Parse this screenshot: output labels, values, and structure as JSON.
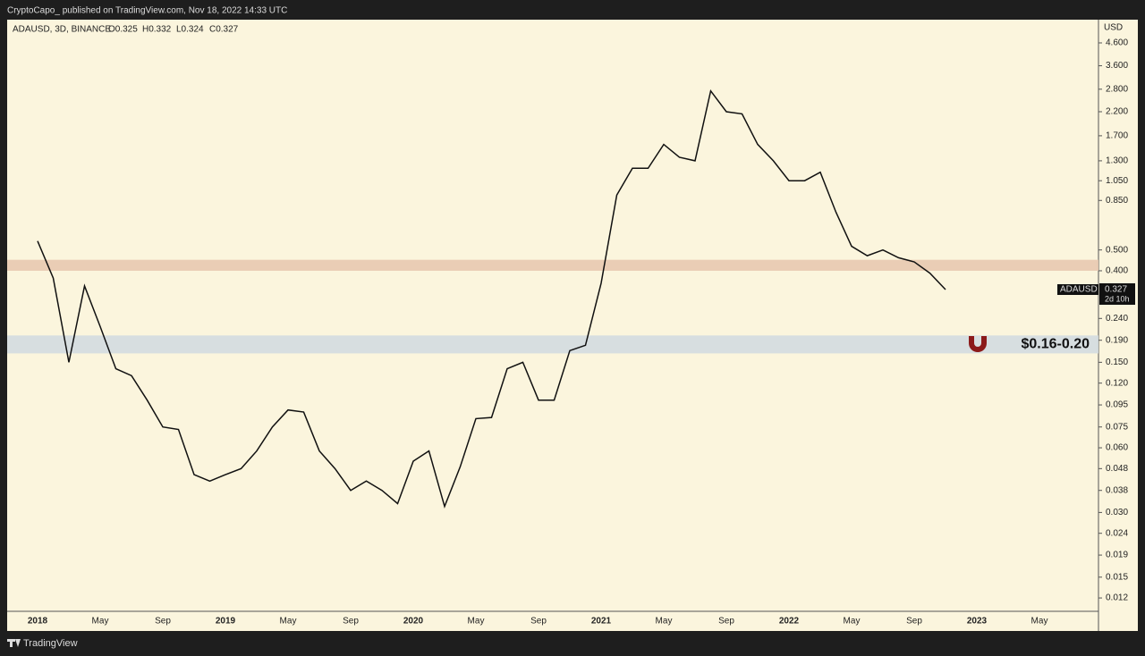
{
  "header": {
    "publisher": "CryptoCapo_ published on TradingView.com, Nov 18, 2022 14:33 UTC",
    "footer": "TradingView"
  },
  "chart_data": {
    "type": "line",
    "log_scale": true,
    "symbol_line": "ADAUSD, 3D, BINANCE",
    "ohlc": [
      "O0.325",
      "H0.332",
      "L0.324",
      "C0.327"
    ],
    "axis_unit": "USD",
    "price_tag": {
      "symbol": "ADAUSD",
      "price": "0.327",
      "countdown": "2d 10h"
    },
    "categories": [
      "2018",
      null,
      null,
      null,
      "May",
      null,
      null,
      null,
      "Sep",
      null,
      null,
      null,
      "2019",
      null,
      null,
      null,
      "May",
      null,
      null,
      null,
      "Sep",
      null,
      null,
      null,
      "2020",
      null,
      null,
      null,
      "May",
      null,
      null,
      null,
      "Sep",
      null,
      null,
      null,
      "2021",
      null,
      null,
      null,
      "May",
      null,
      null,
      null,
      "Sep",
      null,
      null,
      null,
      "2022",
      null,
      null,
      null,
      "May",
      null,
      null,
      null,
      "Sep",
      null,
      null,
      null,
      "2023",
      null,
      null,
      null,
      "May",
      null
    ],
    "series": [
      {
        "name": "ADAUSD",
        "color": "#111111",
        "values": [
          0.55,
          0.37,
          0.15,
          0.34,
          0.22,
          0.14,
          0.13,
          0.1,
          0.075,
          0.073,
          0.045,
          0.042,
          0.045,
          0.048,
          0.058,
          0.075,
          0.09,
          0.088,
          0.058,
          0.048,
          0.038,
          0.042,
          0.038,
          0.033,
          0.052,
          0.058,
          0.032,
          0.049,
          0.082,
          0.083,
          0.14,
          0.15,
          0.1,
          0.1,
          0.17,
          0.18,
          0.35,
          0.9,
          1.2,
          1.2,
          1.55,
          1.35,
          1.3,
          2.75,
          2.2,
          2.15,
          1.55,
          1.3,
          1.05,
          1.05,
          1.15,
          0.75,
          0.52,
          0.47,
          0.5,
          0.46,
          0.44,
          0.39,
          0.327,
          null,
          null,
          null,
          null,
          null,
          null,
          null
        ]
      }
    ],
    "zones": [
      {
        "low": 0.4,
        "high": 0.45,
        "color": "#e8c9b0"
      },
      {
        "low": 0.165,
        "high": 0.2,
        "color": "#d3dbe0",
        "label": "$0.16-0.20"
      }
    ],
    "ylim": [
      0.0104,
      5.9
    ],
    "yticks": [
      {
        "value": 4.6,
        "label": "4.600"
      },
      {
        "value": 3.6,
        "label": "3.600"
      },
      {
        "value": 2.8,
        "label": "2.800"
      },
      {
        "value": 2.2,
        "label": "2.200"
      },
      {
        "value": 1.7,
        "label": "1.700"
      },
      {
        "value": 1.3,
        "label": "1.300"
      },
      {
        "value": 1.05,
        "label": "1.050"
      },
      {
        "value": 0.85,
        "label": "0.850"
      },
      {
        "value": 0.5,
        "label": "0.500"
      },
      {
        "value": 0.4,
        "label": "0.400"
      },
      {
        "value": 0.24,
        "label": "0.240"
      },
      {
        "value": 0.19,
        "label": "0.190"
      },
      {
        "value": 0.15,
        "label": "0.150"
      },
      {
        "value": 0.12,
        "label": "0.120"
      },
      {
        "value": 0.095,
        "label": "0.095"
      },
      {
        "value": 0.075,
        "label": "0.075"
      },
      {
        "value": 0.06,
        "label": "0.060"
      },
      {
        "value": 0.048,
        "label": "0.048"
      },
      {
        "value": 0.038,
        "label": "0.038"
      },
      {
        "value": 0.03,
        "label": "0.030"
      },
      {
        "value": 0.024,
        "label": "0.024"
      },
      {
        "value": 0.019,
        "label": "0.019"
      },
      {
        "value": 0.015,
        "label": "0.015"
      },
      {
        "value": 0.012,
        "label": "0.012"
      }
    ]
  }
}
